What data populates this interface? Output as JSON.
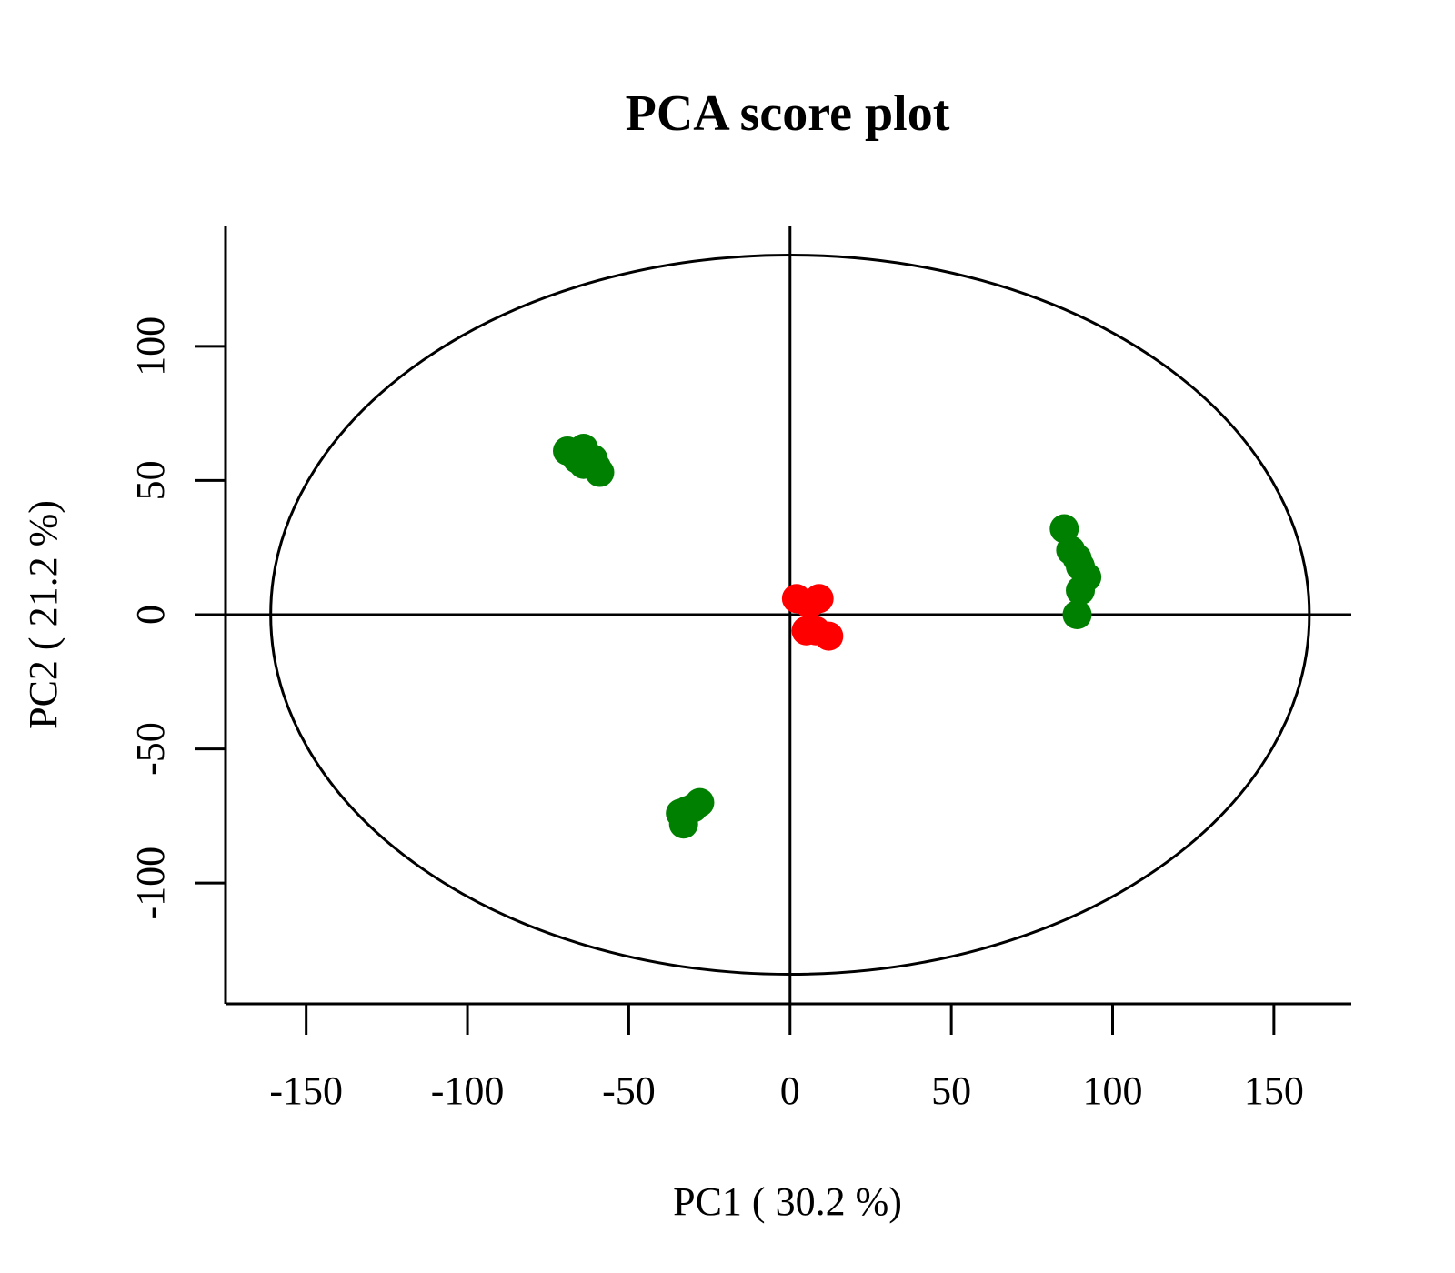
{
  "chart_data": {
    "type": "scatter",
    "title": "PCA score plot",
    "xlabel": "PC1 ( 30.2 %)",
    "ylabel": "PC2 ( 21.2 %)",
    "xlim": [
      -175,
      174
    ],
    "ylim": [
      -145,
      145
    ],
    "xticks": [
      -150,
      -100,
      -50,
      0,
      50,
      100,
      150
    ],
    "yticks": [
      -100,
      -50,
      0,
      50,
      100
    ],
    "grid": false,
    "reference_lines": {
      "x": 0,
      "y": 0
    },
    "confidence_ellipse": {
      "center": [
        0,
        0
      ],
      "semi_axis_x": 161,
      "semi_axis_y": 134
    },
    "series": [
      {
        "color": "#008000",
        "points": [
          [
            -69,
            61
          ],
          [
            -66,
            58
          ],
          [
            -64,
            56
          ],
          [
            -64,
            62
          ],
          [
            -61,
            58
          ],
          [
            -60,
            55
          ],
          [
            -59,
            53
          ],
          [
            85,
            32
          ],
          [
            87,
            24
          ],
          [
            89,
            21
          ],
          [
            90,
            18
          ],
          [
            92,
            14
          ],
          [
            90,
            9
          ],
          [
            89,
            0
          ],
          [
            -34,
            -74
          ],
          [
            -33,
            -78
          ],
          [
            -32,
            -73
          ],
          [
            -30,
            -72
          ],
          [
            -28,
            -70
          ]
        ]
      },
      {
        "color": "#ff0000",
        "points": [
          [
            2,
            6
          ],
          [
            6,
            4
          ],
          [
            9,
            6
          ],
          [
            5,
            -6
          ],
          [
            8,
            -6
          ],
          [
            12,
            -8
          ]
        ]
      }
    ]
  }
}
